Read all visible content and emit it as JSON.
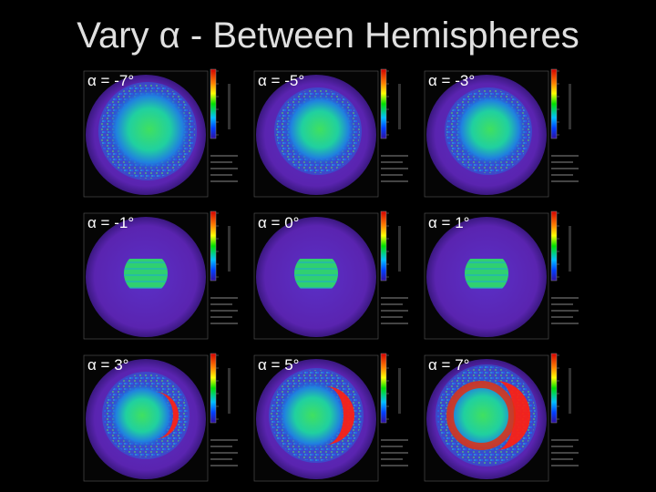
{
  "title": "Vary α - Between Hemispheres",
  "panels": [
    {
      "label": "α = -7°"
    },
    {
      "label": "α = -5°"
    },
    {
      "label": "α = -3°"
    },
    {
      "label": "α = -1°"
    },
    {
      "label": "α = 0°"
    },
    {
      "label": "α = 1°"
    },
    {
      "label": "α = 3°"
    },
    {
      "label": "α = 5°"
    },
    {
      "label": "α = 7°"
    }
  ]
}
